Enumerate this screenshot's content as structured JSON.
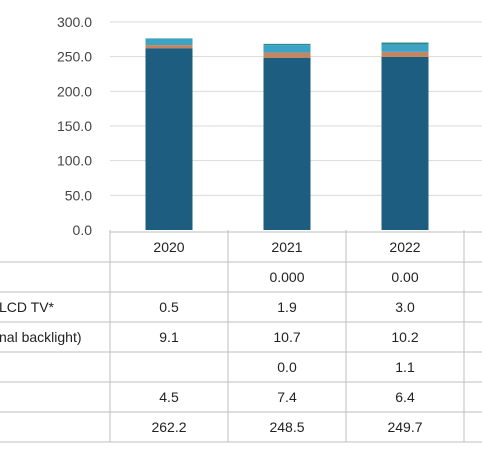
{
  "chart_data": {
    "type": "bar",
    "stacked": true,
    "categories": [
      "2020",
      "2021",
      "2022"
    ],
    "ylim": [
      0,
      300
    ],
    "yticks": [
      "0.0",
      "50.0",
      "100.0",
      "150.0",
      "200.0",
      "250.0",
      "300.0"
    ],
    "grid": true,
    "series": [
      {
        "values": [
          262.2,
          248.5,
          249.7
        ],
        "color": "#1c5d80"
      },
      {
        "values": [
          4.5,
          7.4,
          6.4
        ],
        "color": "#c8845a"
      },
      {
        "values": [
          null,
          0.0,
          1.1
        ],
        "color": "#8a8a8a"
      },
      {
        "values": [
          9.1,
          10.7,
          10.2
        ],
        "color": "#3aa3c6"
      },
      {
        "values": [
          0.5,
          1.9,
          3.0
        ],
        "color": "#2e8a8c"
      },
      {
        "values": [
          null,
          0.0,
          0.0
        ],
        "color": "#5a9a3a"
      }
    ],
    "table": {
      "row_labels": [
        "",
        "LCD TV*",
        "nal backlight)",
        "",
        "",
        ""
      ],
      "rows": [
        [
          "",
          "0.000",
          "0.00"
        ],
        [
          "0.5",
          "1.9",
          "3.0"
        ],
        [
          "9.1",
          "10.7",
          "10.2"
        ],
        [
          "",
          "0.0",
          "1.1"
        ],
        [
          "4.5",
          "7.4",
          "6.4"
        ],
        [
          "262.2",
          "248.5",
          "249.7"
        ]
      ]
    }
  }
}
